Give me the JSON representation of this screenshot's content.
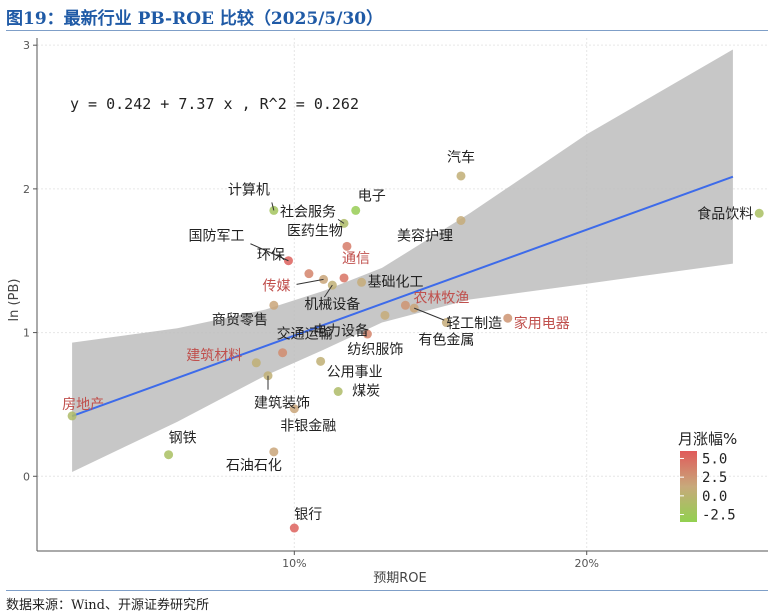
{
  "figure": {
    "title": "图19：最新行业 PB-ROE 比较（2025/5/30）",
    "source": "数据来源：Wind、开源证券研究所"
  },
  "chart_data": {
    "type": "scatter",
    "xlabel": "预期ROE",
    "ylabel": "ln (PB)",
    "x_ticks": [
      {
        "value": 0.1,
        "label": "10%"
      },
      {
        "value": 0.2,
        "label": "20%"
      }
    ],
    "y_ticks": [
      0,
      1,
      2,
      3
    ],
    "xlim": [
      0.012,
      0.262
    ],
    "ylim": [
      -0.52,
      3.05
    ],
    "grid": true,
    "regression": {
      "equation": "y = 0.242 + 7.37 x , R^2 = 0.262",
      "intercept": 0.242,
      "slope": 7.37,
      "line_color": "#3d6bea",
      "band_color": "#bdbdbd",
      "band": [
        {
          "x": 0.024,
          "lower": 0.03,
          "upper": 0.93
        },
        {
          "x": 0.06,
          "lower": 0.38,
          "upper": 1.03
        },
        {
          "x": 0.09,
          "lower": 0.7,
          "upper": 1.16
        },
        {
          "x": 0.11,
          "lower": 0.88,
          "upper": 1.29
        },
        {
          "x": 0.13,
          "lower": 1.07,
          "upper": 1.45
        },
        {
          "x": 0.16,
          "lower": 1.23,
          "upper": 1.83
        },
        {
          "x": 0.2,
          "lower": 1.34,
          "upper": 2.38
        },
        {
          "x": 0.25,
          "lower": 1.48,
          "upper": 2.97
        }
      ]
    },
    "legend": {
      "title": "月涨幅%",
      "position": "right",
      "ticks": [
        5.0,
        2.5,
        0.0,
        -2.5
      ],
      "tick_labels": [
        "5.0",
        "2.5",
        "0.0",
        "-2.5"
      ],
      "range": [
        -3.5,
        6.0
      ],
      "low_color": "#92d050",
      "mid_color": "#c8a97b",
      "high_color": "#e05a5a"
    },
    "highlight_color": "#c0504d",
    "label_color": "#222222",
    "points": [
      {
        "name": "汽车",
        "roe": 0.157,
        "lnpb": 2.09,
        "change": 0.6
      },
      {
        "name": "食品饮料",
        "roe": 0.259,
        "lnpb": 1.83,
        "change": -1.5
      },
      {
        "name": "计算机",
        "roe": 0.093,
        "lnpb": 1.85,
        "change": -2.0
      },
      {
        "name": "电子",
        "roe": 0.121,
        "lnpb": 1.85,
        "change": -3.0
      },
      {
        "name": "社会服务",
        "roe": 0.117,
        "lnpb": 1.76,
        "change": -1.0
      },
      {
        "name": "美容护理",
        "roe": 0.157,
        "lnpb": 1.78,
        "change": 1.0
      },
      {
        "name": "医药生物",
        "roe": 0.118,
        "lnpb": 1.6,
        "change": 4.0,
        "highlight": false
      },
      {
        "name": "国防军工",
        "roe": 0.098,
        "lnpb": 1.5,
        "change": 5.5
      },
      {
        "name": "环保",
        "roe": 0.105,
        "lnpb": 1.41,
        "change": 3.5
      },
      {
        "name": "传媒",
        "roe": 0.11,
        "lnpb": 1.37,
        "change": 1.5,
        "highlight": true
      },
      {
        "name": "通信",
        "roe": 0.117,
        "lnpb": 1.38,
        "change": 4.5,
        "highlight": true
      },
      {
        "name": "基础化工",
        "roe": 0.123,
        "lnpb": 1.35,
        "change": 1.0
      },
      {
        "name": "机械设备",
        "roe": 0.113,
        "lnpb": 1.33,
        "change": 0.5
      },
      {
        "name": "商贸零售",
        "roe": 0.093,
        "lnpb": 1.19,
        "change": 1.5
      },
      {
        "name": "农林牧渔",
        "roe": 0.138,
        "lnpb": 1.19,
        "change": 2.5,
        "highlight": true
      },
      {
        "name": "轻工制造",
        "roe": 0.141,
        "lnpb": 1.17,
        "change": 1.5
      },
      {
        "name": "家用电器",
        "roe": 0.173,
        "lnpb": 1.1,
        "change": 2.5,
        "highlight": true
      },
      {
        "name": "电力设备",
        "roe": 0.131,
        "lnpb": 1.12,
        "change": 1.0
      },
      {
        "name": "有色金属",
        "roe": 0.152,
        "lnpb": 1.07,
        "change": 1.0
      },
      {
        "name": "纺织服饰",
        "roe": 0.125,
        "lnpb": 0.99,
        "change": 3.5
      },
      {
        "name": "交通运输",
        "roe": 0.096,
        "lnpb": 0.86,
        "change": 3.0
      },
      {
        "name": "建筑材料",
        "roe": 0.087,
        "lnpb": 0.79,
        "change": 0.5,
        "highlight": true
      },
      {
        "name": "公用事业",
        "roe": 0.109,
        "lnpb": 0.8,
        "change": 0.5
      },
      {
        "name": "建筑装饰",
        "roe": 0.091,
        "lnpb": 0.7,
        "change": 0.5
      },
      {
        "name": "煤炭",
        "roe": 0.115,
        "lnpb": 0.59,
        "change": -1.0
      },
      {
        "name": "房地产",
        "roe": 0.024,
        "lnpb": 0.42,
        "change": -1.0,
        "highlight": true
      },
      {
        "name": "非银金融",
        "roe": 0.1,
        "lnpb": 0.47,
        "change": 1.5
      },
      {
        "name": "钢铁",
        "roe": 0.057,
        "lnpb": 0.15,
        "change": -1.5
      },
      {
        "name": "石油石化",
        "roe": 0.093,
        "lnpb": 0.17,
        "change": 1.5
      },
      {
        "name": "银行",
        "roe": 0.1,
        "lnpb": -0.36,
        "change": 5.5
      }
    ]
  }
}
